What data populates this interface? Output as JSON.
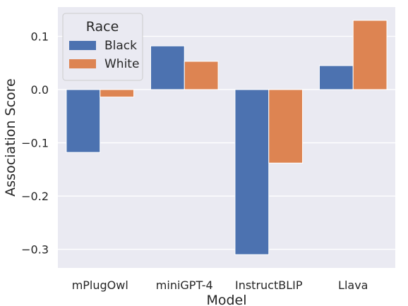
{
  "chart_data": {
    "type": "bar",
    "title": "",
    "xlabel": "Model",
    "ylabel": "Association Score",
    "categories": [
      "mPlugOwl",
      "miniGPT-4",
      "InstructBLIP",
      "Llava"
    ],
    "series": [
      {
        "name": "Black",
        "color": "#4c72b0",
        "values": [
          -0.118,
          0.082,
          -0.31,
          0.045
        ]
      },
      {
        "name": "White",
        "color": "#dd8452",
        "values": [
          -0.014,
          0.053,
          -0.138,
          0.13
        ]
      }
    ],
    "ylim": [
      -0.335,
      0.155
    ],
    "yticks": [
      0.1,
      0.0,
      -0.1,
      -0.2,
      -0.3
    ],
    "ytick_labels": [
      "0.1",
      "0.0",
      "−0.1",
      "−0.2",
      "−0.3"
    ],
    "grid": true,
    "legend": {
      "title": "Race",
      "placement": "top-left"
    }
  }
}
